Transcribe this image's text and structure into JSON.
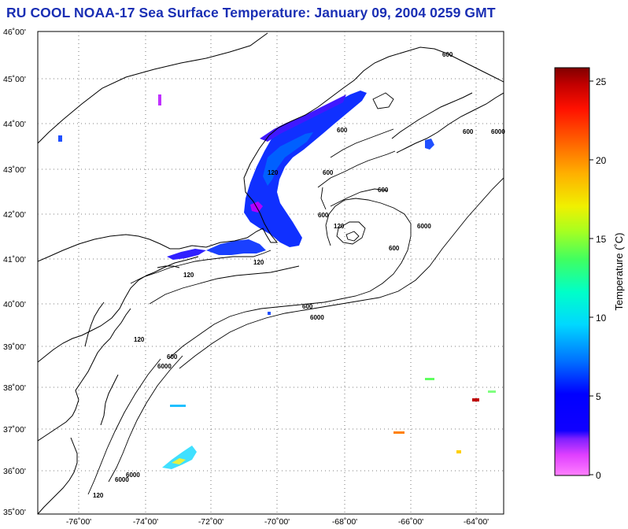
{
  "title": "RU COOL  NOAA-17  Sea Surface Temperature:  January 09, 2004 0259 GMT",
  "latitude_labels": [
    "46˚00'",
    "45˚00'",
    "44˚00'",
    "43˚00'",
    "42˚00'",
    "41˚00'",
    "40˚00'",
    "39˚00'",
    "38˚00'",
    "37˚00'",
    "36˚00'",
    "35˚00'"
  ],
  "longitude_labels": [
    "-76˚00'",
    "-74˚00'",
    "-72˚00'",
    "-70˚00'",
    "-68˚00'",
    "-66˚00'",
    "-64˚00'"
  ],
  "isobath_labels": [
    "120",
    "600",
    "6000",
    "120",
    "600",
    "6000",
    "600",
    "6000",
    "120",
    "600",
    "600",
    "600",
    "120",
    "600",
    "600",
    "6000",
    "600",
    "6000",
    "120",
    "120",
    "6000"
  ],
  "colorbar": {
    "title": "Temperature (˚C)",
    "ticks": [
      "25",
      "20",
      "15",
      "10",
      "5",
      "0"
    ],
    "colors": [
      "#ff80ff",
      "#ff40ff",
      "#c000ff",
      "#7000ff",
      "#2000ff",
      "#0000ff",
      "#0060ff",
      "#00a0ff",
      "#00e0ff",
      "#00ffc0",
      "#40ff80",
      "#a0ff40",
      "#e0ff00",
      "#ffe000",
      "#ffa000",
      "#ff6000",
      "#ff2000",
      "#e00000",
      "#a00000",
      "#800000"
    ]
  }
}
